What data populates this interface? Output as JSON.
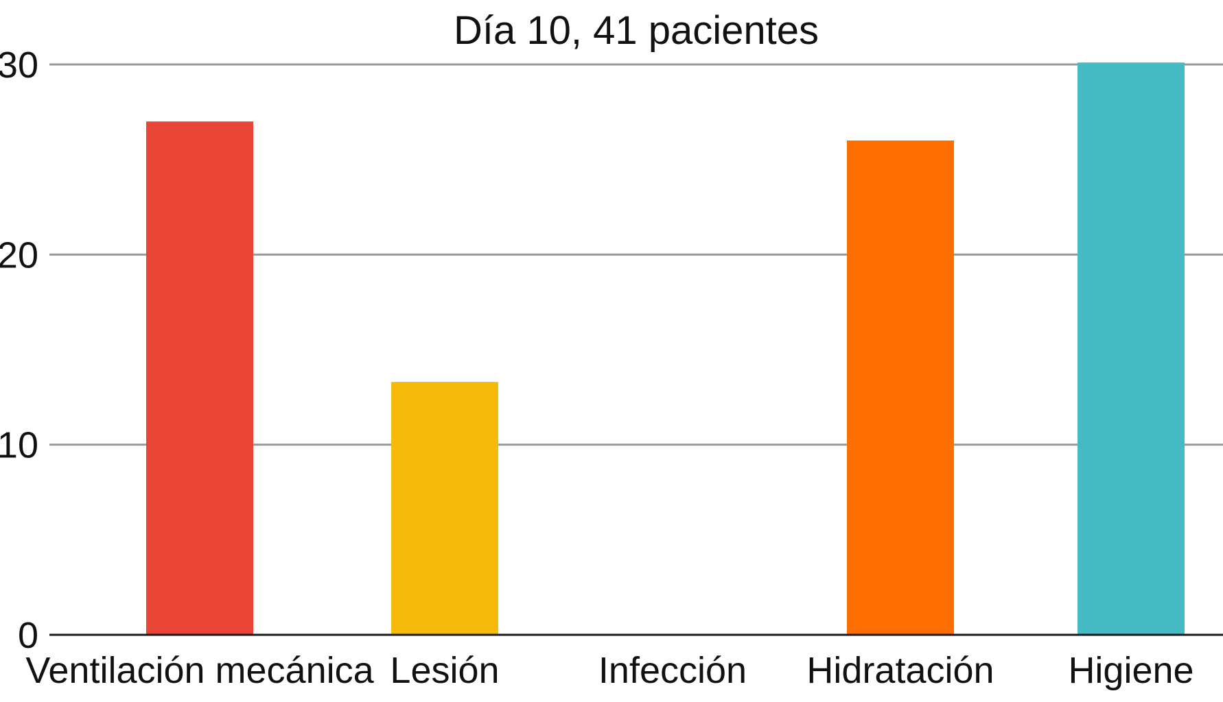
{
  "chart_data": {
    "type": "bar",
    "title": "Día 10, 41 pacientes",
    "xlabel": "",
    "ylabel": "",
    "categories": [
      "Ventilación mecánica",
      "Lesión",
      "Infección",
      "Hidratación",
      "Higiene"
    ],
    "values": [
      27,
      13.3,
      0,
      26,
      30.1
    ],
    "colors": [
      "#e84536",
      "#f6bb0a",
      "#8c8c8c",
      "#ff6e00",
      "#45bbc4"
    ],
    "ylim": [
      0,
      30
    ],
    "yticks": [
      "0",
      "10",
      "20",
      "30"
    ],
    "grid": true,
    "legend": "none"
  }
}
